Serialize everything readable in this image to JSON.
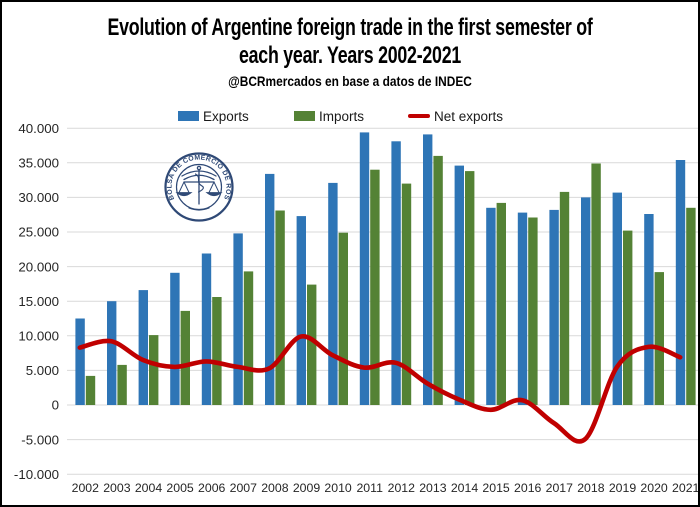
{
  "title": {
    "line1": "Evolution of Argentine foreign trade in the first semester of",
    "line2": "each year. Years 2002-2021"
  },
  "subtitle": "@BCRmercados en base a datos de INDEC",
  "watermark": {
    "text": "BOLSA DE COMERCIO DE ROSARIO"
  },
  "colors": {
    "exports": "#2E75B6",
    "imports": "#548235",
    "net": "#C00000",
    "grid": "#D9D9D9",
    "axis_text": "#262626",
    "logo": "#24406F"
  },
  "chart_data": {
    "type": "bar+line",
    "title": "Evolution of Argentine foreign trade in the first semester of each year. Years 2002-2021",
    "subtitle": "@BCRmercados en base a datos de INDEC",
    "categories": [
      "2002",
      "2003",
      "2004",
      "2005",
      "2006",
      "2007",
      "2008",
      "2009",
      "2010",
      "2011",
      "2012",
      "2013",
      "2014",
      "2015",
      "2016",
      "2017",
      "2018",
      "2019",
      "2020",
      "2021"
    ],
    "series": [
      {
        "name": "Exports",
        "type": "bar",
        "values": [
          12500,
          15000,
          16600,
          19100,
          21900,
          24800,
          33400,
          27300,
          32100,
          39400,
          38100,
          39100,
          34600,
          28500,
          27800,
          28200,
          30000,
          30700,
          27600,
          35400
        ]
      },
      {
        "name": "Imports",
        "type": "bar",
        "values": [
          4200,
          5800,
          10100,
          13600,
          15600,
          19300,
          28100,
          17400,
          24900,
          34000,
          32000,
          36000,
          33800,
          29200,
          27100,
          30800,
          34900,
          25200,
          19200,
          28500
        ]
      },
      {
        "name": "Net exports",
        "type": "line",
        "smooth": true,
        "values": [
          8300,
          9200,
          6500,
          5500,
          6300,
          5500,
          5300,
          9900,
          7200,
          5400,
          6100,
          3100,
          800,
          -700,
          700,
          -2600,
          -4900,
          5500,
          8400,
          6900
        ]
      }
    ],
    "ylim": [
      -10000,
      40000
    ],
    "y_ticks": [
      {
        "value": 40000,
        "label": "40.000"
      },
      {
        "value": 35000,
        "label": "35.000"
      },
      {
        "value": 30000,
        "label": "30.000"
      },
      {
        "value": 25000,
        "label": "25.000"
      },
      {
        "value": 20000,
        "label": "20.000"
      },
      {
        "value": 15000,
        "label": "15.000"
      },
      {
        "value": 10000,
        "label": "10.000"
      },
      {
        "value": 5000,
        "label": "5.000"
      },
      {
        "value": 0,
        "label": "0"
      },
      {
        "value": -5000,
        "label": "-5.000"
      },
      {
        "value": -10000,
        "label": "-10.000"
      }
    ],
    "grid": true,
    "legend_position": "top"
  }
}
